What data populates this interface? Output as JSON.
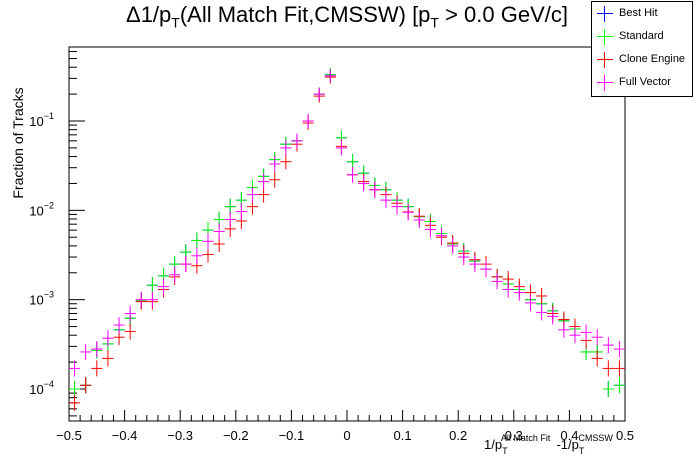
{
  "chart_data": {
    "type": "scatter",
    "title": "Δ1/pT(All Match Fit,CMSSW) [pT > 0.0 GeV/c]",
    "title_parts": {
      "a": "Δ1/p",
      "b": "T",
      "c": "(All Match Fit,CMSSW) [p",
      "d": "T",
      "e": " > 0.0 GeV/c]"
    },
    "ylabel": "Fraction of Tracks",
    "xlabel": "1/pT All Match Fit - 1/pT CMSSW",
    "xlabel_parts": {
      "a": "1/p",
      "b": "T",
      "c": "All Match Fit",
      "d": "-1/p",
      "e": "T",
      "f": "CMSSW"
    },
    "xlim": [
      -0.5,
      0.5
    ],
    "ylim": [
      4e-05,
      0.7
    ],
    "yscale": "log",
    "x_ticks": [
      "−0.5",
      "−0.4",
      "−0.3",
      "−0.2",
      "−0.1",
      "0",
      "0.1",
      "0.2",
      "0.3",
      "0.4",
      "0.5"
    ],
    "y_ticks": [
      {
        "base": "10",
        "exp": "−4",
        "value": 0.0001
      },
      {
        "base": "10",
        "exp": "−3",
        "value": 0.001
      },
      {
        "base": "10",
        "exp": "−2",
        "value": 0.01
      },
      {
        "base": "10",
        "exp": "−1",
        "value": 0.1
      }
    ],
    "legend_position": "top-right",
    "grid": false,
    "bin_width": 0.02,
    "x": [
      -0.49,
      -0.47,
      -0.45,
      -0.43,
      -0.41,
      -0.39,
      -0.37,
      -0.35,
      -0.33,
      -0.31,
      -0.29,
      -0.27,
      -0.25,
      -0.23,
      -0.21,
      -0.19,
      -0.17,
      -0.15,
      -0.13,
      -0.11,
      -0.09,
      -0.07,
      -0.05,
      -0.03,
      -0.01,
      0.01,
      0.03,
      0.05,
      0.07,
      0.09,
      0.11,
      0.13,
      0.15,
      0.17,
      0.19,
      0.21,
      0.23,
      0.25,
      0.27,
      0.29,
      0.31,
      0.33,
      0.35,
      0.37,
      0.39,
      0.41,
      0.43,
      0.45,
      0.47,
      0.49
    ],
    "series": [
      {
        "name": "Best Hit",
        "color": "#0000ff",
        "values": [
          0.0001,
          0.00011,
          0.00027,
          0.00032,
          0.00046,
          0.00062,
          0.00097,
          0.00145,
          0.00185,
          0.0025,
          0.0034,
          0.0046,
          0.006,
          0.0079,
          0.011,
          0.013,
          0.018,
          0.024,
          0.037,
          0.055,
          0.06,
          0.1,
          0.2,
          0.33,
          0.065,
          0.035,
          0.026,
          0.019,
          0.017,
          0.013,
          0.011,
          0.0085,
          0.0075,
          0.0055,
          0.0042,
          0.0035,
          0.0027,
          0.0022,
          0.0018,
          0.0015,
          0.0013,
          0.001,
          0.0009,
          0.00075,
          0.00058,
          0.00047,
          0.00026,
          0.00026,
          0.0001,
          0.00011
        ]
      },
      {
        "name": "Standard",
        "color": "#00ff00",
        "values": [
          0.0001,
          0.00011,
          0.00027,
          0.00032,
          0.00046,
          0.00062,
          0.00097,
          0.00145,
          0.00185,
          0.0025,
          0.0034,
          0.0046,
          0.006,
          0.0079,
          0.011,
          0.013,
          0.018,
          0.024,
          0.037,
          0.055,
          0.06,
          0.1,
          0.2,
          0.33,
          0.065,
          0.035,
          0.026,
          0.019,
          0.017,
          0.013,
          0.011,
          0.0085,
          0.0075,
          0.0055,
          0.0042,
          0.0035,
          0.0027,
          0.0022,
          0.0018,
          0.0015,
          0.0013,
          0.001,
          0.0009,
          0.00075,
          0.00058,
          0.00047,
          0.00026,
          0.00026,
          0.0001,
          0.00011
        ]
      },
      {
        "name": "Clone Engine",
        "color": "#ff0000",
        "values": [
          7e-05,
          0.00011,
          0.00017,
          0.00022,
          0.00038,
          0.00044,
          0.00095,
          0.00095,
          0.0013,
          0.0018,
          0.0025,
          0.0024,
          0.0032,
          0.0042,
          0.0062,
          0.0076,
          0.011,
          0.015,
          0.022,
          0.035,
          0.055,
          0.095,
          0.19,
          0.31,
          0.052,
          0.025,
          0.021,
          0.017,
          0.015,
          0.012,
          0.0096,
          0.0086,
          0.0068,
          0.005,
          0.0043,
          0.0033,
          0.0028,
          0.0025,
          0.0018,
          0.0017,
          0.0014,
          0.0012,
          0.0011,
          0.0007,
          0.0006,
          0.0005,
          0.00035,
          0.00022,
          0.00017,
          0.00017
        ]
      },
      {
        "name": "Full Vector",
        "color": "#ff00ff",
        "values": [
          0.00017,
          0.00026,
          0.00028,
          0.00037,
          0.00052,
          0.0007,
          0.001,
          0.001,
          0.0014,
          0.0019,
          0.0025,
          0.0031,
          0.0045,
          0.0058,
          0.0079,
          0.0097,
          0.015,
          0.021,
          0.033,
          0.05,
          0.06,
          0.1,
          0.2,
          0.32,
          0.05,
          0.025,
          0.02,
          0.017,
          0.013,
          0.011,
          0.0095,
          0.0078,
          0.0061,
          0.0052,
          0.004,
          0.003,
          0.0025,
          0.0022,
          0.0016,
          0.0013,
          0.0012,
          0.00092,
          0.00072,
          0.00065,
          0.00046,
          0.0004,
          0.00043,
          0.00038,
          0.00031,
          0.00028
        ]
      }
    ]
  }
}
